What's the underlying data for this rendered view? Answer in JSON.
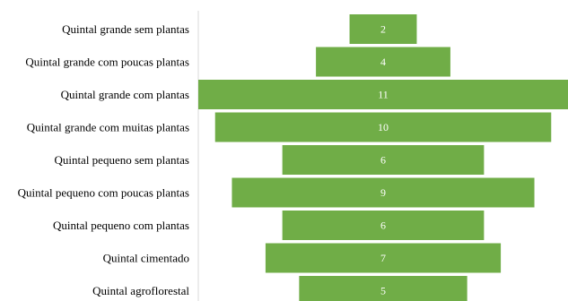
{
  "chart_data": {
    "type": "bar",
    "orientation": "horizontal-centered",
    "categories": [
      "Quintal grande sem plantas",
      "Quintal grande com poucas plantas",
      "Quintal grande com plantas",
      "Quintal grande com muitas plantas",
      "Quintal pequeno sem plantas",
      "Quintal pequeno com poucas plantas",
      "Quintal pequeno com plantas",
      "Quintal cimentado",
      "Quintal agroflorestal"
    ],
    "values": [
      2,
      4,
      11,
      10,
      6,
      9,
      6,
      7,
      5
    ],
    "data_labels": [
      "2",
      "4",
      "11",
      "10",
      "6",
      "9",
      "6",
      "7",
      "5"
    ],
    "title": "",
    "xlabel": "",
    "ylabel": "",
    "bar_color": "#70AD47",
    "label_color": "#FFFFFF",
    "grid": false,
    "legend": "none"
  }
}
